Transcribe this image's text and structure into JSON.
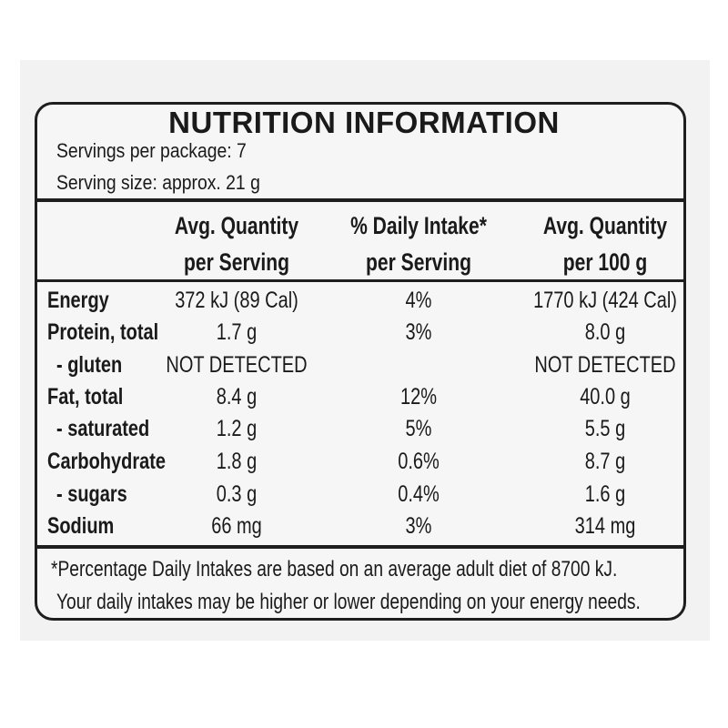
{
  "panel": {
    "title": "NUTRITION INFORMATION",
    "servings_per_package": "Servings per package: 7",
    "serving_size": "Serving size: approx. 21 g"
  },
  "columns": {
    "per_serving": [
      "Avg. Quantity",
      "per Serving"
    ],
    "daily_intake": [
      "% Daily Intake*",
      "per Serving"
    ],
    "per_100g": [
      "Avg. Quantity",
      "per 100 g"
    ]
  },
  "rows": [
    {
      "nutrient": "Energy",
      "per_serving": "372 kJ (89 Cal)",
      "daily_intake": "4%",
      "per_100g": "1770 kJ (424 Cal)"
    },
    {
      "nutrient": "Protein, total",
      "per_serving": "1.7 g",
      "daily_intake": "3%",
      "per_100g": "8.0 g"
    },
    {
      "nutrient": "- gluten",
      "per_serving": "NOT DETECTED",
      "daily_intake": "",
      "per_100g": "NOT DETECTED"
    },
    {
      "nutrient": "Fat, total",
      "per_serving": "8.4 g",
      "daily_intake": "12%",
      "per_100g": "40.0 g"
    },
    {
      "nutrient": "- saturated",
      "per_serving": "1.2 g",
      "daily_intake": "5%",
      "per_100g": "5.5 g"
    },
    {
      "nutrient": "Carbohydrate",
      "per_serving": "1.8 g",
      "daily_intake": "0.6%",
      "per_100g": "8.7 g"
    },
    {
      "nutrient": "- sugars",
      "per_serving": "0.3 g",
      "daily_intake": "0.4%",
      "per_100g": "1.6 g"
    },
    {
      "nutrient": "Sodium",
      "per_serving": "66 mg",
      "daily_intake": "3%",
      "per_100g": "314 mg"
    }
  ],
  "footnote": [
    "*Percentage Daily Intakes are based on an average adult diet of 8700 kJ.",
    "Your daily intakes may be higher or lower depending on your energy needs."
  ],
  "colors": {
    "ink": "#1e1e1e",
    "panel_background": "#f6f6f7"
  }
}
